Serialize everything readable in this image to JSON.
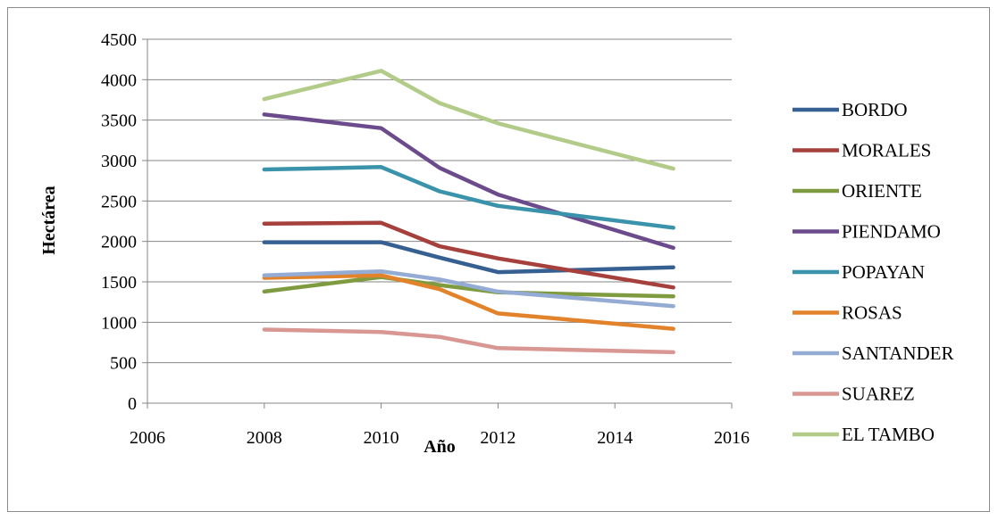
{
  "chart_data": {
    "type": "line",
    "xlabel": "Año",
    "ylabel": "Hectárea",
    "xlim": [
      2006,
      2016
    ],
    "ylim": [
      0,
      4500
    ],
    "xticks": [
      2006,
      2008,
      2010,
      2012,
      2014,
      2016
    ],
    "yticks": [
      0,
      500,
      1000,
      1500,
      2000,
      2500,
      3000,
      3500,
      4000,
      4500
    ],
    "grid": "horizontal",
    "legend_position": "right",
    "x": [
      2008,
      2010,
      2011,
      2012,
      2015
    ],
    "series": [
      {
        "name": "BORDO",
        "color": "#376092",
        "values": [
          1990,
          1990,
          1800,
          1620,
          1680
        ]
      },
      {
        "name": "MORALES",
        "color": "#a5403d",
        "values": [
          2220,
          2230,
          1940,
          1790,
          1430
        ]
      },
      {
        "name": "ORIENTE",
        "color": "#7e9c3f",
        "values": [
          1380,
          1560,
          1460,
          1370,
          1320
        ]
      },
      {
        "name": "PIENDAMO",
        "color": "#6c4b8d",
        "values": [
          3570,
          3400,
          2910,
          2580,
          1920
        ]
      },
      {
        "name": "POPAYAN",
        "color": "#3a93ab",
        "values": [
          2890,
          2920,
          2620,
          2440,
          2170
        ]
      },
      {
        "name": "ROSAS",
        "color": "#e2822a",
        "values": [
          1550,
          1580,
          1410,
          1110,
          920
        ]
      },
      {
        "name": "SANTANDER",
        "color": "#94abd4",
        "values": [
          1580,
          1630,
          1530,
          1380,
          1200
        ]
      },
      {
        "name": "SUAREZ",
        "color": "#d99793",
        "values": [
          910,
          880,
          820,
          680,
          630
        ]
      },
      {
        "name": "EL TAMBO",
        "color": "#b2cb88",
        "values": [
          3760,
          4110,
          3710,
          3460,
          2900
        ]
      }
    ]
  }
}
